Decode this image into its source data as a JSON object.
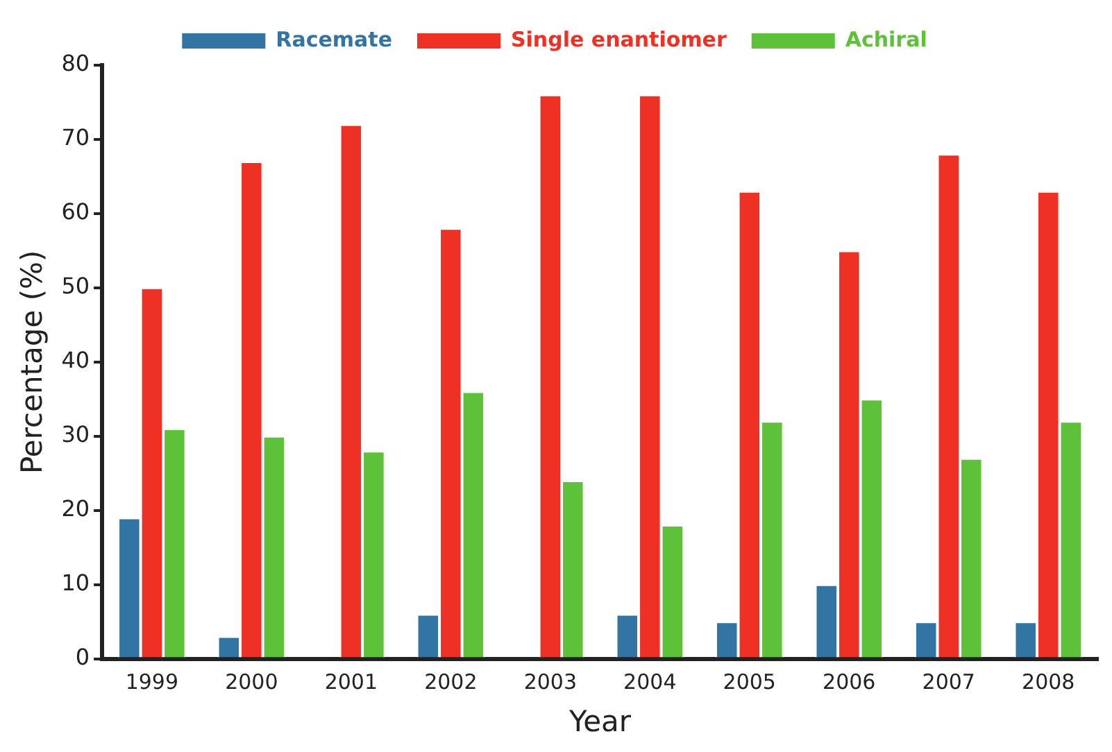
{
  "chart_data": {
    "type": "bar",
    "xlabel": "Year",
    "ylabel": "Percentage (%)",
    "categories": [
      "1999",
      "2000",
      "2001",
      "2002",
      "2003",
      "2004",
      "2005",
      "2006",
      "2007",
      "2008"
    ],
    "series": [
      {
        "name": "Racemate",
        "color": "#3274a4",
        "values": [
          19,
          3,
          0,
          6,
          0,
          6,
          5,
          10,
          5,
          5
        ]
      },
      {
        "name": "Single enantiomer",
        "color": "#ee3124",
        "values": [
          50,
          67,
          72,
          58,
          76,
          76,
          63,
          55,
          68,
          63
        ]
      },
      {
        "name": "Achiral",
        "color": "#5dc13a",
        "values": [
          31,
          30,
          28,
          36,
          24,
          18,
          32,
          35,
          27,
          32
        ]
      }
    ],
    "ylim": [
      0,
      80
    ],
    "yticks": [
      0,
      10,
      20,
      30,
      40,
      50,
      60,
      70,
      80
    ],
    "grid": false,
    "legend": "top"
  }
}
